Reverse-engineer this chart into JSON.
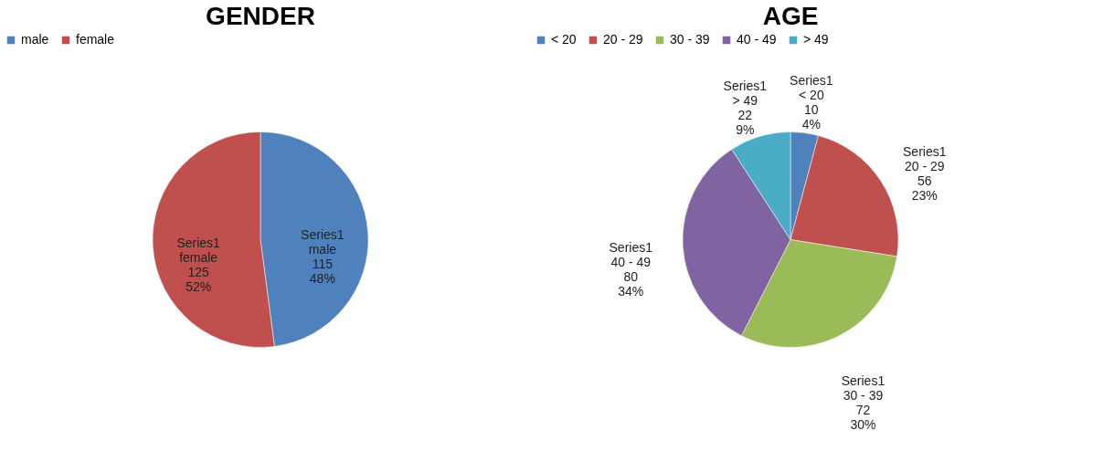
{
  "chart_data": [
    {
      "type": "pie",
      "title": "GENDER",
      "categories": [
        "male",
        "female"
      ],
      "values": [
        115,
        125
      ],
      "colors": [
        "#4f81bd",
        "#c0504d"
      ],
      "legend": "top",
      "value_labels": [
        "Series1\nmale\n115\n48%",
        "Series1\nfemale\n125\n52%"
      ]
    },
    {
      "type": "pie",
      "title": "AGE",
      "categories": [
        "< 20",
        "20 - 29",
        "30 - 39",
        "40 - 49",
        "> 49"
      ],
      "values": [
        10,
        56,
        72,
        80,
        22
      ],
      "colors": [
        "#4f81bd",
        "#c0504d",
        "#9bbb59",
        "#8064a2",
        "#4bacc6"
      ],
      "legend": "top",
      "value_labels": [
        "Series1\n< 20\n10\n4%",
        "Series1\n20 - 29\n56\n23%",
        "Series1\n30 - 39\n72\n30%",
        "Series1\n40 - 49\n80\n34%",
        "Series1\n> 49\n22\n9%"
      ]
    }
  ]
}
